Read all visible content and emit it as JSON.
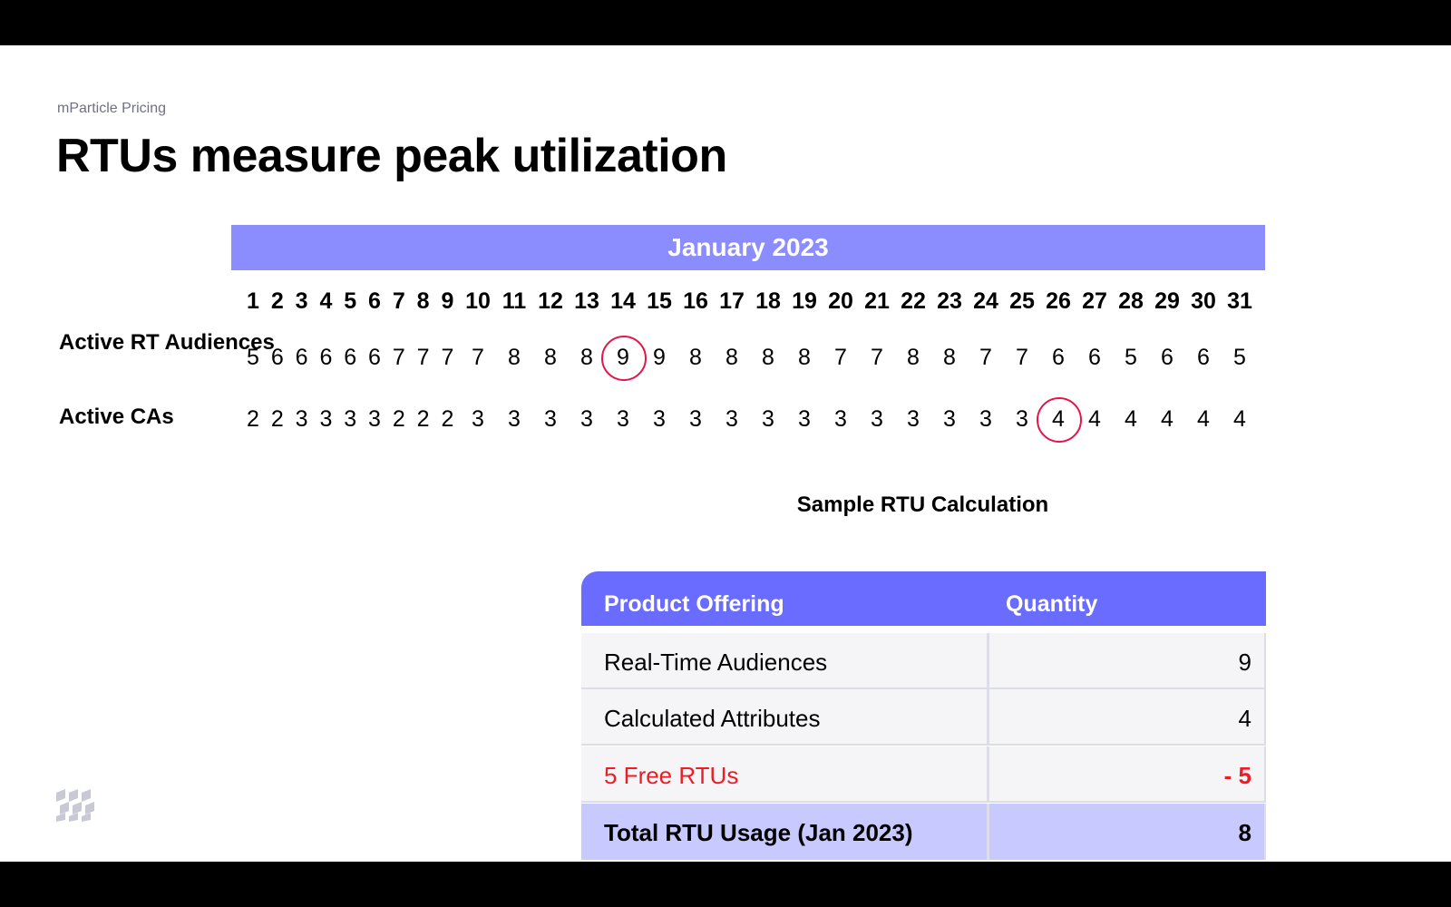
{
  "kicker": "mParticle Pricing",
  "title": "RTUs measure peak utilization",
  "calendar": {
    "month": "January 2023",
    "days": [
      "1",
      "2",
      "3",
      "4",
      "5",
      "6",
      "7",
      "8",
      "9",
      "10",
      "11",
      "12",
      "13",
      "14",
      "15",
      "16",
      "17",
      "18",
      "19",
      "20",
      "21",
      "22",
      "23",
      "24",
      "25",
      "26",
      "27",
      "28",
      "29",
      "30",
      "31"
    ],
    "rows": [
      {
        "label": "Active RT Audiences",
        "values": [
          "5",
          "6",
          "6",
          "6",
          "6",
          "6",
          "7",
          "7",
          "7",
          "7",
          "8",
          "8",
          "8",
          "9",
          "9",
          "8",
          "8",
          "8",
          "8",
          "7",
          "7",
          "8",
          "8",
          "7",
          "7",
          "6",
          "6",
          "5",
          "6",
          "6",
          "5"
        ],
        "peak_day": "14"
      },
      {
        "label": "Active CAs",
        "values": [
          "2",
          "2",
          "3",
          "3",
          "3",
          "3",
          "2",
          "2",
          "2",
          "3",
          "3",
          "3",
          "3",
          "3",
          "3",
          "3",
          "3",
          "3",
          "3",
          "3",
          "3",
          "3",
          "3",
          "3",
          "3",
          "4",
          "4",
          "4",
          "4",
          "4",
          "4"
        ],
        "peak_day": "26"
      }
    ],
    "colors": {
      "month_bar": "#8b8cfe",
      "peak_ring": "#e4154b"
    }
  },
  "calculation": {
    "title": "Sample RTU Calculation",
    "headers": {
      "offering": "Product Offering",
      "quantity": "Quantity"
    },
    "rows": [
      {
        "offering": "Real-Time Audiences",
        "quantity": "9"
      },
      {
        "offering": "Calculated Attributes",
        "quantity": "4"
      },
      {
        "offering": "5 Free RTUs",
        "quantity": "- 5"
      },
      {
        "offering": "Total RTU Usage (Jan 2023)",
        "quantity": "8"
      }
    ],
    "colors": {
      "header": "#6a6bff",
      "free": "#ee1c25",
      "total_row": "#c8c9fe"
    }
  },
  "logo": "mparticle-logo-icon"
}
